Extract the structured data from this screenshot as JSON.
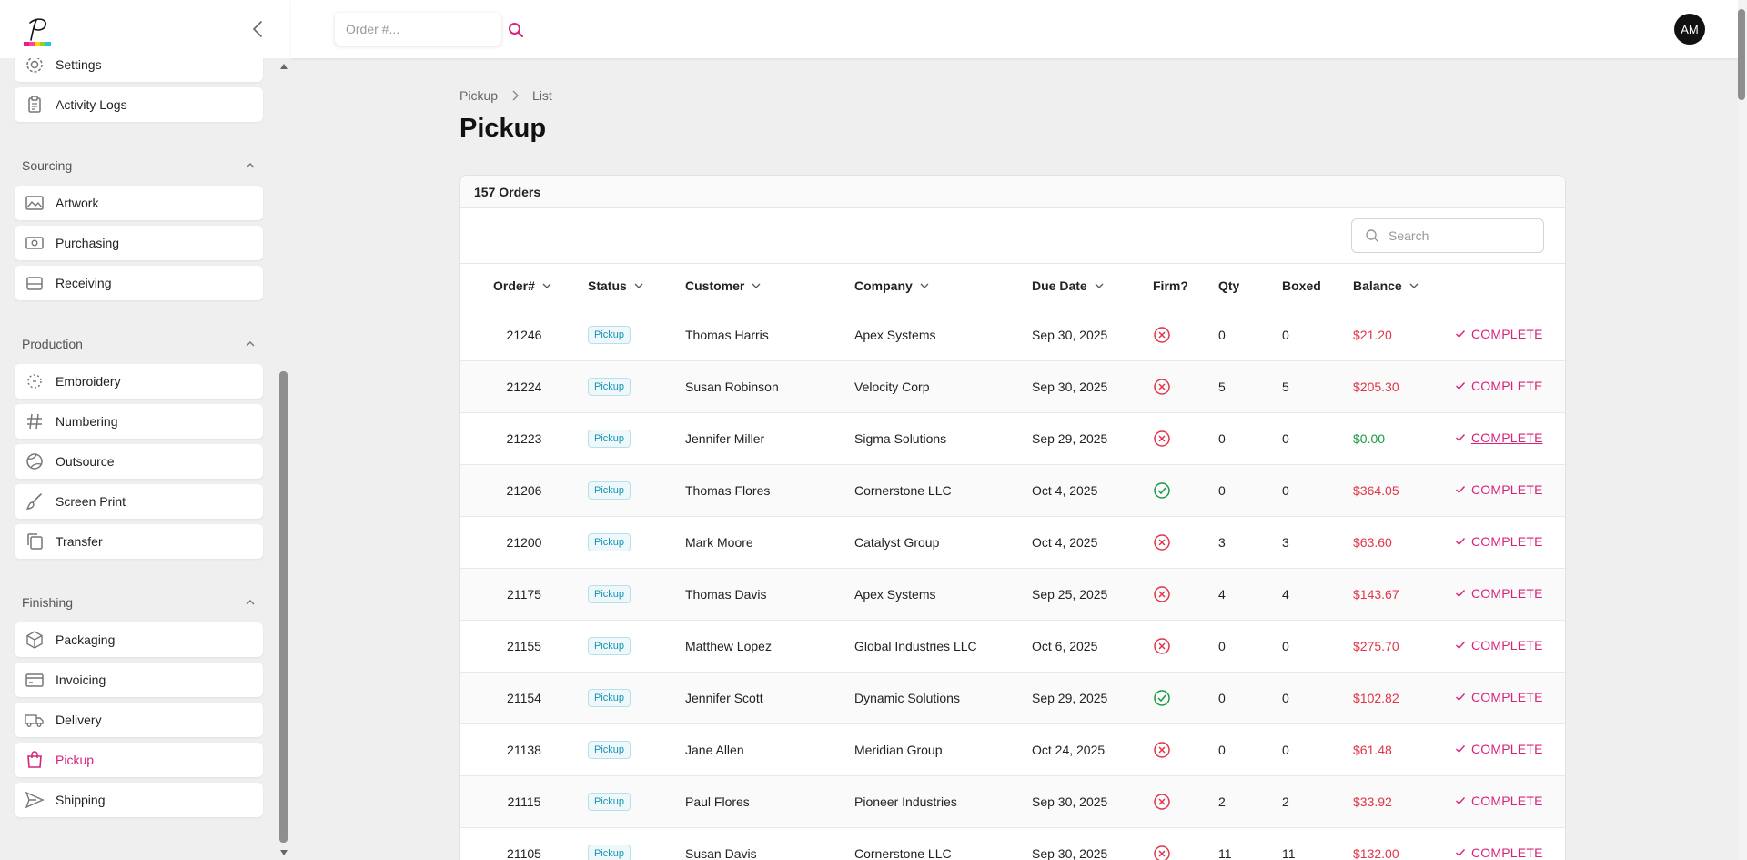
{
  "app": {
    "logo_icon": "p-logo-icon",
    "collapse_icon": "chevron-left-icon",
    "order_search_placeholder": "Order #...",
    "search_icon": "search-icon",
    "avatar_initials": "AM",
    "accent_color": "#d6247b"
  },
  "sidebar": {
    "top_items": [
      {
        "label": "Settings",
        "icon": "gear-icon"
      },
      {
        "label": "Activity Logs",
        "icon": "clipboard-icon"
      }
    ],
    "sections": [
      {
        "title": "Sourcing",
        "items": [
          {
            "label": "Artwork",
            "icon": "image-icon"
          },
          {
            "label": "Purchasing",
            "icon": "money-icon"
          },
          {
            "label": "Receiving",
            "icon": "inbox-icon"
          }
        ]
      },
      {
        "title": "Production",
        "items": [
          {
            "label": "Embroidery",
            "icon": "embroidery-icon"
          },
          {
            "label": "Numbering",
            "icon": "hash-icon"
          },
          {
            "label": "Outsource",
            "icon": "globe-icon"
          },
          {
            "label": "Screen Print",
            "icon": "brush-icon"
          },
          {
            "label": "Transfer",
            "icon": "copy-icon"
          }
        ]
      },
      {
        "title": "Finishing",
        "items": [
          {
            "label": "Packaging",
            "icon": "box-icon"
          },
          {
            "label": "Invoicing",
            "icon": "credit-card-icon"
          },
          {
            "label": "Delivery",
            "icon": "truck-icon"
          },
          {
            "label": "Pickup",
            "icon": "shopping-bag-icon",
            "active": true
          },
          {
            "label": "Shipping",
            "icon": "send-icon"
          }
        ]
      }
    ]
  },
  "breadcrumb": [
    "Pickup",
    "List"
  ],
  "page_title": "Pickup",
  "orders_count_label": "157 Orders",
  "table_search_placeholder": "Search",
  "columns": [
    "Order#",
    "Status",
    "Customer",
    "Company",
    "Due Date",
    "Firm?",
    "Qty",
    "Boxed",
    "Balance",
    ""
  ],
  "rows": [
    {
      "order": "21246",
      "status": "Pickup",
      "customer": "Thomas Harris",
      "company": "Apex Systems",
      "due": "Sep 30, 2025",
      "firm": false,
      "qty": "0",
      "boxed": "0",
      "balance": "$21.20",
      "action": "COMPLETE"
    },
    {
      "order": "21224",
      "status": "Pickup",
      "customer": "Susan Robinson",
      "company": "Velocity Corp",
      "due": "Sep 30, 2025",
      "firm": false,
      "qty": "5",
      "boxed": "5",
      "balance": "$205.30",
      "action": "COMPLETE"
    },
    {
      "order": "21223",
      "status": "Pickup",
      "customer": "Jennifer Miller",
      "company": "Sigma Solutions",
      "due": "Sep 29, 2025",
      "firm": false,
      "qty": "0",
      "boxed": "0",
      "balance": "$0.00",
      "action": "COMPLETE",
      "hover": true
    },
    {
      "order": "21206",
      "status": "Pickup",
      "customer": "Thomas Flores",
      "company": "Cornerstone LLC",
      "due": "Oct 4, 2025",
      "firm": true,
      "qty": "0",
      "boxed": "0",
      "balance": "$364.05",
      "action": "COMPLETE"
    },
    {
      "order": "21200",
      "status": "Pickup",
      "customer": "Mark Moore",
      "company": "Catalyst Group",
      "due": "Oct 4, 2025",
      "firm": false,
      "qty": "3",
      "boxed": "3",
      "balance": "$63.60",
      "action": "COMPLETE"
    },
    {
      "order": "21175",
      "status": "Pickup",
      "customer": "Thomas Davis",
      "company": "Apex Systems",
      "due": "Sep 25, 2025",
      "firm": false,
      "qty": "4",
      "boxed": "4",
      "balance": "$143.67",
      "action": "COMPLETE"
    },
    {
      "order": "21155",
      "status": "Pickup",
      "customer": "Matthew Lopez",
      "company": "Global Industries LLC",
      "due": "Oct 6, 2025",
      "firm": false,
      "qty": "0",
      "boxed": "0",
      "balance": "$275.70",
      "action": "COMPLETE"
    },
    {
      "order": "21154",
      "status": "Pickup",
      "customer": "Jennifer Scott",
      "company": "Dynamic Solutions",
      "due": "Sep 29, 2025",
      "firm": true,
      "qty": "0",
      "boxed": "0",
      "balance": "$102.82",
      "action": "COMPLETE"
    },
    {
      "order": "21138",
      "status": "Pickup",
      "customer": "Jane Allen",
      "company": "Meridian Group",
      "due": "Oct 24, 2025",
      "firm": false,
      "qty": "0",
      "boxed": "0",
      "balance": "$61.48",
      "action": "COMPLETE"
    },
    {
      "order": "21115",
      "status": "Pickup",
      "customer": "Paul Flores",
      "company": "Pioneer Industries",
      "due": "Sep 30, 2025",
      "firm": false,
      "qty": "2",
      "boxed": "2",
      "balance": "$33.92",
      "action": "COMPLETE"
    },
    {
      "order": "21105",
      "status": "Pickup",
      "customer": "Susan Davis",
      "company": "Cornerstone LLC",
      "due": "Sep 30, 2025",
      "firm": false,
      "qty": "11",
      "boxed": "11",
      "balance": "$132.00",
      "action": "COMPLETE"
    }
  ]
}
